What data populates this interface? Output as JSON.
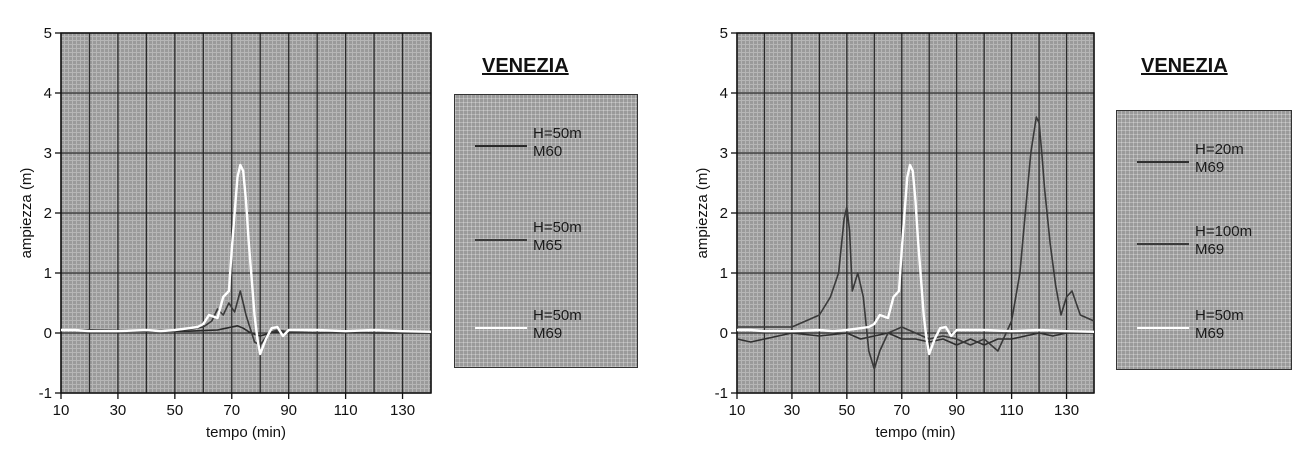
{
  "chart_data": [
    {
      "type": "line",
      "title": "VENEZIA",
      "xlabel": "tempo (min)",
      "ylabel": "ampiezza (m)",
      "xlim": [
        10,
        140
      ],
      "ylim": [
        -1,
        5
      ],
      "xticks": [
        10,
        30,
        50,
        70,
        90,
        110,
        130
      ],
      "yticks": [
        -1,
        0,
        1,
        2,
        3,
        4,
        5
      ],
      "grid": true,
      "legend_position": "right",
      "colors": {
        "background": "#9a9a9a",
        "grid": "#2a2a2a"
      },
      "series": [
        {
          "name": "H=50m M60",
          "legend_line1": "H=50m",
          "legend_line2": "M60",
          "color": "#2a2a2a",
          "x": [
            10,
            20,
            30,
            40,
            50,
            55,
            60,
            65,
            68,
            70,
            72,
            74,
            76,
            78,
            80,
            85,
            90,
            100,
            110,
            120,
            130,
            140
          ],
          "y": [
            0.05,
            0.05,
            0.03,
            0.03,
            0.03,
            0.03,
            0.04,
            0.05,
            0.08,
            0.1,
            0.12,
            0.08,
            0.02,
            -0.02,
            -0.05,
            0.02,
            0.01,
            0.0,
            0.01,
            0.0,
            0.0,
            0.0
          ]
        },
        {
          "name": "H=50m M65",
          "legend_line1": "H=50m",
          "legend_line2": "M65",
          "color": "#3a3a3a",
          "x": [
            10,
            20,
            30,
            40,
            50,
            55,
            60,
            63,
            65,
            67,
            69,
            71,
            73,
            74,
            75,
            76,
            77,
            78,
            80,
            83,
            86,
            90,
            100,
            110,
            120,
            130,
            140
          ],
          "y": [
            0.05,
            0.05,
            0.04,
            0.04,
            0.04,
            0.06,
            0.1,
            0.2,
            0.4,
            0.3,
            0.5,
            0.35,
            0.7,
            0.5,
            0.3,
            0.15,
            0.0,
            -0.15,
            -0.2,
            0.0,
            0.05,
            0.02,
            0.0,
            0.02,
            0.0,
            0.0,
            0.0
          ]
        },
        {
          "name": "H=50m M69",
          "legend_line1": "H=50m",
          "legend_line2": "M69",
          "color": "#ffffff",
          "x": [
            10,
            15,
            20,
            30,
            40,
            45,
            50,
            55,
            58,
            60,
            62,
            65,
            67,
            69,
            70,
            71,
            72,
            73,
            74,
            75,
            76,
            77,
            78,
            79,
            80,
            82,
            84,
            86,
            88,
            90,
            100,
            110,
            120,
            130,
            140
          ],
          "y": [
            0.05,
            0.05,
            0.03,
            0.03,
            0.05,
            0.03,
            0.05,
            0.08,
            0.1,
            0.15,
            0.3,
            0.25,
            0.6,
            0.7,
            1.4,
            2.0,
            2.6,
            2.8,
            2.7,
            2.2,
            1.5,
            0.9,
            0.3,
            -0.1,
            -0.35,
            -0.1,
            0.08,
            0.1,
            -0.05,
            0.05,
            0.05,
            0.03,
            0.05,
            0.03,
            0.02
          ]
        }
      ]
    },
    {
      "type": "line",
      "title": "VENEZIA",
      "xlabel": "tempo (min)",
      "ylabel": "ampiezza (m)",
      "xlim": [
        10,
        140
      ],
      "ylim": [
        -1,
        5
      ],
      "xticks": [
        10,
        30,
        50,
        70,
        90,
        110,
        130
      ],
      "yticks": [
        -1,
        0,
        1,
        2,
        3,
        4,
        5
      ],
      "grid": true,
      "legend_position": "right",
      "colors": {
        "background": "#9a9a9a",
        "grid": "#2a2a2a"
      },
      "series": [
        {
          "name": "H=20m M69",
          "legend_line1": "H=20m",
          "legend_line2": "M69",
          "color": "#2f2f2f",
          "x": [
            10,
            15,
            20,
            30,
            40,
            50,
            55,
            60,
            65,
            70,
            75,
            80,
            85,
            90,
            95,
            100,
            105,
            110,
            115,
            120,
            125,
            130,
            135,
            140
          ],
          "y": [
            -0.1,
            -0.15,
            -0.1,
            0.0,
            -0.05,
            0.0,
            -0.1,
            -0.05,
            0.0,
            -0.1,
            -0.1,
            -0.15,
            -0.1,
            -0.2,
            -0.1,
            -0.2,
            -0.1,
            -0.1,
            -0.05,
            0.0,
            -0.05,
            0.0,
            0.0,
            0.0
          ]
        },
        {
          "name": "H=100m M69",
          "legend_line1": "H=100m",
          "legend_line2": "M69",
          "color": "#3a3a3a",
          "x": [
            10,
            20,
            30,
            35,
            40,
            44,
            47,
            49,
            50,
            51,
            52,
            54,
            56,
            58,
            60,
            62,
            65,
            70,
            75,
            80,
            85,
            90,
            95,
            100,
            105,
            110,
            113,
            115,
            117,
            119,
            120,
            121,
            122,
            124,
            126,
            128,
            130,
            132,
            135,
            140
          ],
          "y": [
            0.1,
            0.1,
            0.1,
            0.2,
            0.3,
            0.6,
            1.0,
            1.9,
            2.1,
            1.7,
            0.7,
            1.0,
            0.6,
            -0.3,
            -0.6,
            -0.3,
            0.0,
            0.1,
            0.0,
            -0.1,
            -0.05,
            -0.1,
            -0.2,
            -0.1,
            -0.3,
            0.2,
            1.0,
            2.0,
            3.0,
            3.6,
            3.5,
            3.0,
            2.4,
            1.5,
            0.8,
            0.3,
            0.6,
            0.7,
            0.3,
            0.2
          ]
        },
        {
          "name": "H=50m M69",
          "legend_line1": "H=50m",
          "legend_line2": "M69",
          "color": "#ffffff",
          "x": [
            10,
            15,
            20,
            30,
            40,
            45,
            50,
            55,
            58,
            60,
            62,
            65,
            67,
            69,
            70,
            71,
            72,
            73,
            74,
            75,
            76,
            77,
            78,
            79,
            80,
            82,
            84,
            86,
            88,
            90,
            100,
            110,
            120,
            130,
            140
          ],
          "y": [
            0.05,
            0.05,
            0.03,
            0.03,
            0.05,
            0.03,
            0.05,
            0.08,
            0.1,
            0.15,
            0.3,
            0.25,
            0.6,
            0.7,
            1.4,
            2.0,
            2.6,
            2.8,
            2.7,
            2.2,
            1.5,
            0.9,
            0.3,
            -0.1,
            -0.35,
            -0.1,
            0.08,
            0.1,
            -0.05,
            0.05,
            0.05,
            0.03,
            0.05,
            0.03,
            0.02
          ]
        }
      ]
    }
  ]
}
